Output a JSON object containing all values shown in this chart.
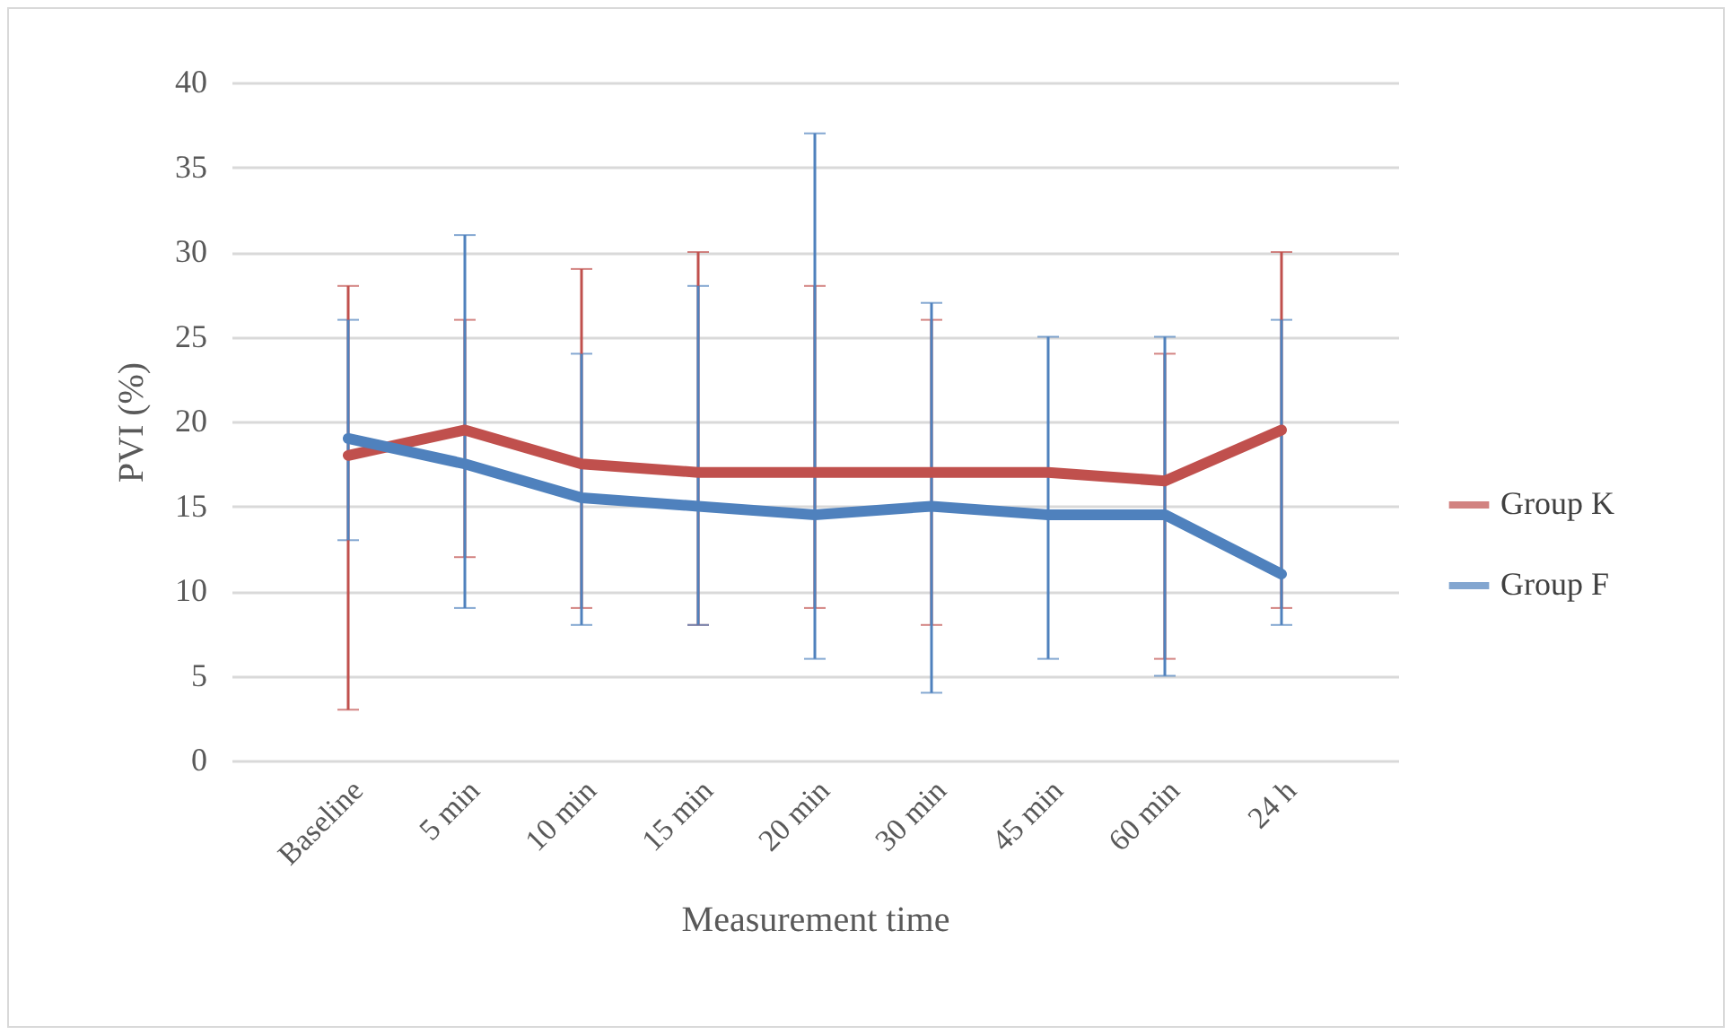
{
  "chart_data": {
    "type": "line",
    "xlabel": "Measurement time",
    "ylabel": "PVI (%)",
    "categories": [
      "Baseline",
      "5 min",
      "10 min",
      "15 min",
      "20 min",
      "30 min",
      "45 min",
      "60 min",
      "24 h"
    ],
    "series": [
      {
        "name": "Group K",
        "color": "#c0504d",
        "values": [
          18,
          19.5,
          17.5,
          17,
          17,
          17,
          17,
          16.5,
          19.5
        ],
        "errors": [
          [
            3,
            28
          ],
          [
            12,
            26
          ],
          [
            9,
            29
          ],
          [
            8,
            30
          ],
          [
            9,
            28
          ],
          [
            8,
            26
          ],
          null,
          [
            6,
            24
          ],
          [
            9,
            30
          ]
        ]
      },
      {
        "name": "Group F",
        "color": "#4f81bd",
        "values": [
          19,
          17.5,
          15.5,
          15,
          14.5,
          15,
          14.5,
          14.5,
          11
        ],
        "errors": [
          [
            13,
            26
          ],
          [
            9,
            31
          ],
          [
            8,
            24
          ],
          [
            8,
            28
          ],
          [
            6,
            37
          ],
          [
            4,
            27
          ],
          [
            6,
            25
          ],
          [
            5,
            25
          ],
          [
            8,
            26
          ]
        ]
      }
    ],
    "ylim": [
      0,
      40
    ],
    "yticks": [
      0,
      5,
      10,
      15,
      20,
      25,
      30,
      35,
      40
    ],
    "grid": "y",
    "legend": "right",
    "marker": "none",
    "line_style": "solid"
  }
}
